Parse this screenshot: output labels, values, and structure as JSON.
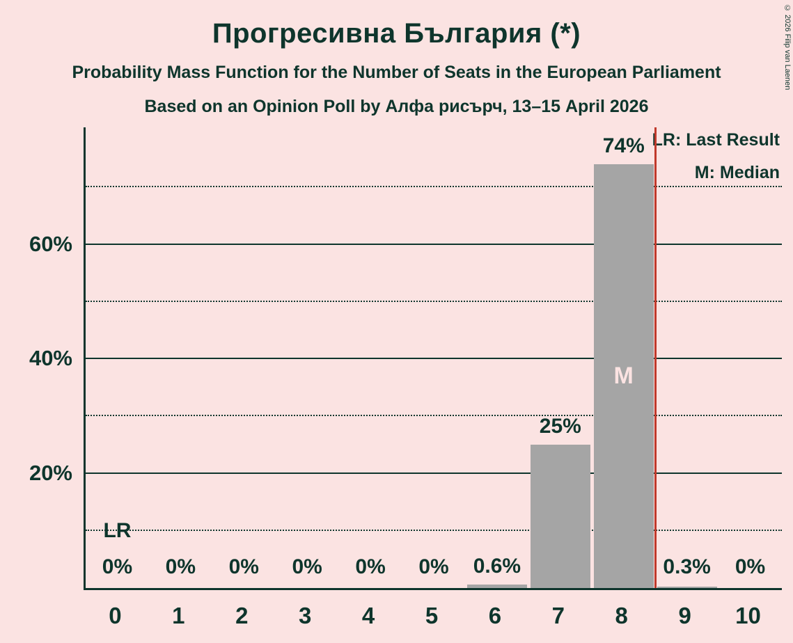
{
  "header": {
    "title": "Прогресивна България (*)",
    "subtitle1": "Probability Mass Function for the Number of Seats in the European Parliament",
    "subtitle2": "Based on an Opinion Poll by Алфа рисърч, 13–15 April 2026",
    "copyright": "© 2026 Filip van Laenen"
  },
  "legend": {
    "lr": "LR: Last Result",
    "m": "M: Median"
  },
  "chart_data": {
    "type": "bar",
    "title": "Прогресивна България (*)",
    "categories": [
      "0",
      "1",
      "2",
      "3",
      "4",
      "5",
      "6",
      "7",
      "8",
      "9",
      "10"
    ],
    "values": [
      0,
      0,
      0,
      0,
      0,
      0,
      0.6,
      25,
      74,
      0.3,
      0
    ],
    "value_labels": [
      "0%",
      "0%",
      "0%",
      "0%",
      "0%",
      "0%",
      "0.6%",
      "25%",
      "74%",
      "0.3%",
      "0%"
    ],
    "ymax_pct": 80.5,
    "y_ticks": [
      {
        "pct": 20,
        "label": "20%"
      },
      {
        "pct": 40,
        "label": "40%"
      },
      {
        "pct": 60,
        "label": "60%"
      }
    ],
    "gridlines": {
      "solid": [
        20,
        40,
        60
      ],
      "dotted": [
        10,
        30,
        50,
        70
      ]
    },
    "median_category": "8",
    "median_marker": "M",
    "last_result_label": "LR",
    "last_result_category": "0",
    "lr_line_boundary": 9,
    "colors": {
      "background": "#fbe3e2",
      "text": "#0e352c",
      "bar": "#a5a5a5",
      "median_text": "#fbe3e2",
      "lr_line": "#c0392b"
    }
  }
}
